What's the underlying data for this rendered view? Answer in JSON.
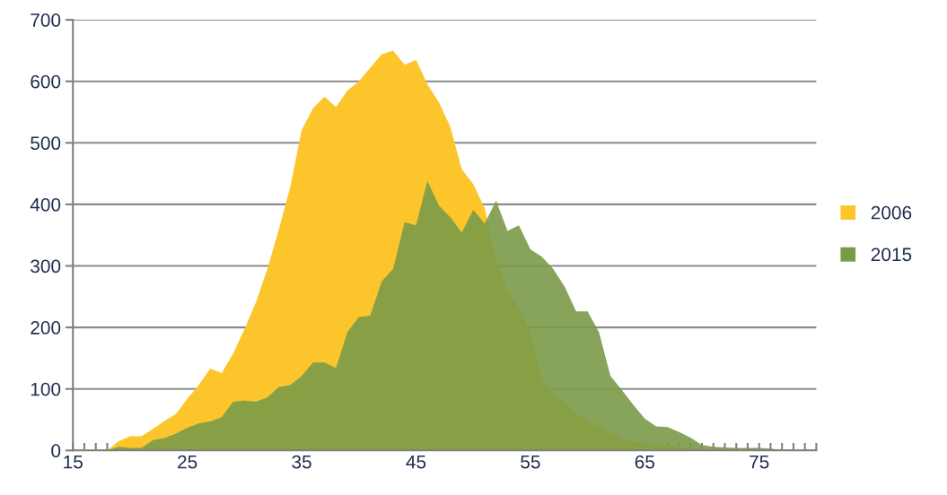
{
  "chart_data": {
    "type": "area",
    "x": [
      15,
      16,
      17,
      18,
      19,
      20,
      21,
      22,
      23,
      24,
      25,
      26,
      27,
      28,
      29,
      30,
      31,
      32,
      33,
      34,
      35,
      36,
      37,
      38,
      39,
      40,
      41,
      42,
      43,
      44,
      45,
      46,
      47,
      48,
      49,
      50,
      51,
      52,
      53,
      54,
      55,
      56,
      57,
      58,
      59,
      60,
      61,
      62,
      63,
      64,
      65,
      66,
      67,
      68,
      69,
      70,
      71,
      72,
      73,
      74,
      75,
      76,
      77,
      78,
      79
    ],
    "series": [
      {
        "name": "2006",
        "color": "#fcc52b",
        "values": [
          1,
          2,
          2,
          0,
          15,
          23,
          23,
          35,
          48,
          59,
          84,
          106,
          133,
          126,
          157,
          197,
          241,
          295,
          359,
          428,
          521,
          556,
          575,
          558,
          585,
          600,
          622,
          644,
          650,
          627,
          635,
          595,
          566,
          526,
          457,
          433,
          394,
          310,
          261,
          231,
          192,
          118,
          89,
          79,
          59,
          49,
          39,
          30,
          20,
          14,
          12,
          11,
          9,
          6,
          3,
          2,
          1,
          1,
          1,
          1,
          1,
          1,
          1,
          1,
          1
        ]
      },
      {
        "name": "2015",
        "color": "#7a9a48",
        "values": [
          0,
          0,
          0,
          0,
          6,
          4,
          4,
          17,
          20,
          27,
          37,
          44,
          47,
          54,
          79,
          81,
          79,
          86,
          103,
          106,
          121,
          143,
          143,
          134,
          192,
          217,
          219,
          275,
          295,
          371,
          366,
          438,
          398,
          379,
          354,
          391,
          369,
          406,
          357,
          366,
          327,
          315,
          295,
          266,
          226,
          226,
          192,
          121,
          98,
          74,
          52,
          39,
          38,
          30,
          21,
          9,
          6,
          5,
          4,
          4,
          4,
          3,
          1,
          0,
          0
        ]
      }
    ],
    "xlim": [
      15,
      80
    ],
    "xticks": [
      15,
      {
        "value": 16,
        "label": null
      },
      {
        "value": 17,
        "label": null
      },
      {
        "value": 18,
        "label": null
      },
      {
        "value": 19,
        "label": null
      },
      {
        "value": 20,
        "label": null
      },
      {
        "value": 21,
        "label": null
      },
      {
        "value": 22,
        "label": null
      },
      {
        "value": 23,
        "label": null
      },
      {
        "value": 24,
        "label": null
      },
      25,
      {
        "value": 26,
        "label": null
      },
      {
        "value": 27,
        "label": null
      },
      {
        "value": 28,
        "label": null
      },
      {
        "value": 29,
        "label": null
      },
      {
        "value": 30,
        "label": null
      },
      {
        "value": 31,
        "label": null
      },
      {
        "value": 32,
        "label": null
      },
      {
        "value": 33,
        "label": null
      },
      {
        "value": 34,
        "label": null
      },
      35,
      {
        "value": 36,
        "label": null
      },
      {
        "value": 37,
        "label": null
      },
      {
        "value": 38,
        "label": null
      },
      {
        "value": 39,
        "label": null
      },
      {
        "value": 40,
        "label": null
      },
      {
        "value": 41,
        "label": null
      },
      {
        "value": 42,
        "label": null
      },
      {
        "value": 43,
        "label": null
      },
      {
        "value": 44,
        "label": null
      },
      45,
      {
        "value": 46,
        "label": null
      },
      {
        "value": 47,
        "label": null
      },
      {
        "value": 48,
        "label": null
      },
      {
        "value": 49,
        "label": null
      },
      {
        "value": 50,
        "label": null
      },
      {
        "value": 51,
        "label": null
      },
      {
        "value": 52,
        "label": null
      },
      {
        "value": 53,
        "label": null
      },
      {
        "value": 54,
        "label": null
      },
      55,
      {
        "value": 56,
        "label": null
      },
      {
        "value": 57,
        "label": null
      },
      {
        "value": 58,
        "label": null
      },
      {
        "value": 59,
        "label": null
      },
      {
        "value": 60,
        "label": null
      },
      {
        "value": 61,
        "label": null
      },
      {
        "value": 62,
        "label": null
      },
      {
        "value": 63,
        "label": null
      },
      {
        "value": 64,
        "label": null
      },
      65,
      {
        "value": 66,
        "label": null
      },
      {
        "value": 67,
        "label": null
      },
      {
        "value": 68,
        "label": null
      },
      {
        "value": 69,
        "label": null
      },
      {
        "value": 70,
        "label": null
      },
      {
        "value": 71,
        "label": null
      },
      {
        "value": 72,
        "label": null
      },
      {
        "value": 73,
        "label": null
      },
      {
        "value": 74,
        "label": null
      },
      75,
      {
        "value": 76,
        "label": null
      },
      {
        "value": 77,
        "label": null
      },
      {
        "value": 78,
        "label": null
      },
      {
        "value": 79,
        "label": null
      },
      {
        "value": 80,
        "label": null
      }
    ],
    "ylim": [
      0,
      700
    ],
    "yticks": [
      0,
      100,
      200,
      300,
      400,
      500,
      600,
      700
    ],
    "grid": "y",
    "legend": "right"
  }
}
